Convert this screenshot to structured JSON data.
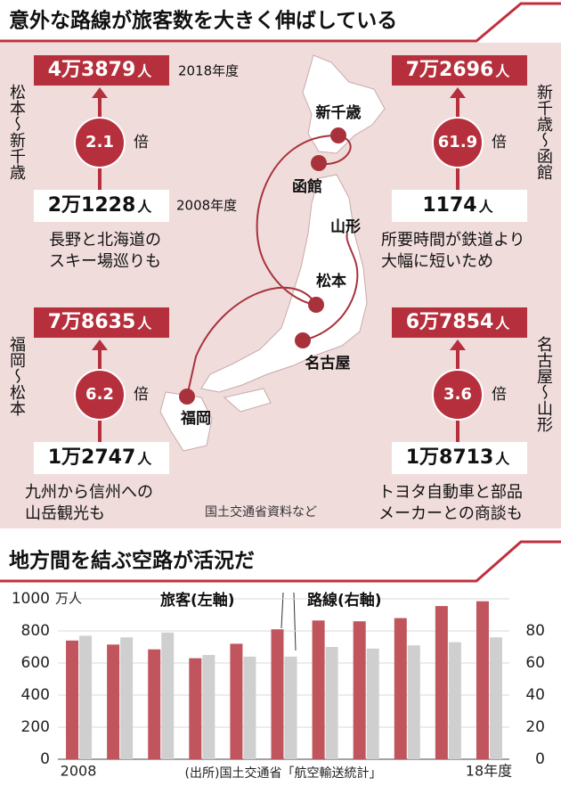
{
  "header": {
    "title": "意外な路線が旅客数を大きく伸ばしている"
  },
  "years": {
    "recent": "2018年度",
    "base": "2008年度"
  },
  "routes": [
    {
      "name": "松本～新千歳",
      "top_value": "4万3879",
      "top_unit": "人",
      "ratio": "2.1",
      "ratio_unit": "倍",
      "bottom_value": "2万1228",
      "bottom_unit": "人",
      "note": [
        "長野と北海道の",
        "スキー場巡りも"
      ]
    },
    {
      "name": "新千歳～函館",
      "top_value": "7万2696",
      "top_unit": "人",
      "ratio": "61.9",
      "ratio_unit": "倍",
      "bottom_value": "1174",
      "bottom_unit": "人",
      "note": [
        "所要時間が鉄道より",
        "大幅に短いため"
      ]
    },
    {
      "name": "福岡～松本",
      "top_value": "7万8635",
      "top_unit": "人",
      "ratio": "6.2",
      "ratio_unit": "倍",
      "bottom_value": "1万2747",
      "bottom_unit": "人",
      "note": [
        "九州から信州への",
        "山岳観光も"
      ]
    },
    {
      "name": "名古屋～山形",
      "top_value": "6万7854",
      "top_unit": "人",
      "ratio": "3.6",
      "ratio_unit": "倍",
      "bottom_value": "1万8713",
      "bottom_unit": "人",
      "note": [
        "トヨタ自動車と部品",
        "メーカーとの商談も"
      ]
    }
  ],
  "map": {
    "cities": [
      "新千歳",
      "函館",
      "山形",
      "松本",
      "名古屋",
      "福岡"
    ],
    "source": "国土交通省資料など"
  },
  "chart_data": {
    "type": "bar",
    "title": "地方間を結ぶ空路が活況だ",
    "categories": [
      "2008",
      null,
      null,
      null,
      null,
      null,
      null,
      null,
      null,
      null,
      "18年度"
    ],
    "series": [
      {
        "name": "旅客(左軸)",
        "color": "#c0555d",
        "values": [
          740,
          715,
          685,
          630,
          720,
          810,
          865,
          860,
          880,
          955,
          985
        ]
      },
      {
        "name": "路線(右軸)",
        "color": "#cfcfcf",
        "axis": "y2",
        "values": [
          77,
          76,
          79,
          65,
          64,
          64,
          70,
          69,
          71,
          73,
          76
        ]
      }
    ],
    "ylim": [
      0,
      1000
    ],
    "yticks": [
      0,
      200,
      400,
      600,
      800,
      1000
    ],
    "y_unit": "万人",
    "y2lim": [
      0,
      100
    ],
    "y2ticks": [
      0,
      20,
      40,
      60,
      80
    ],
    "grid": true,
    "source": "(出所)国土交通省「航空輸送統計」"
  }
}
